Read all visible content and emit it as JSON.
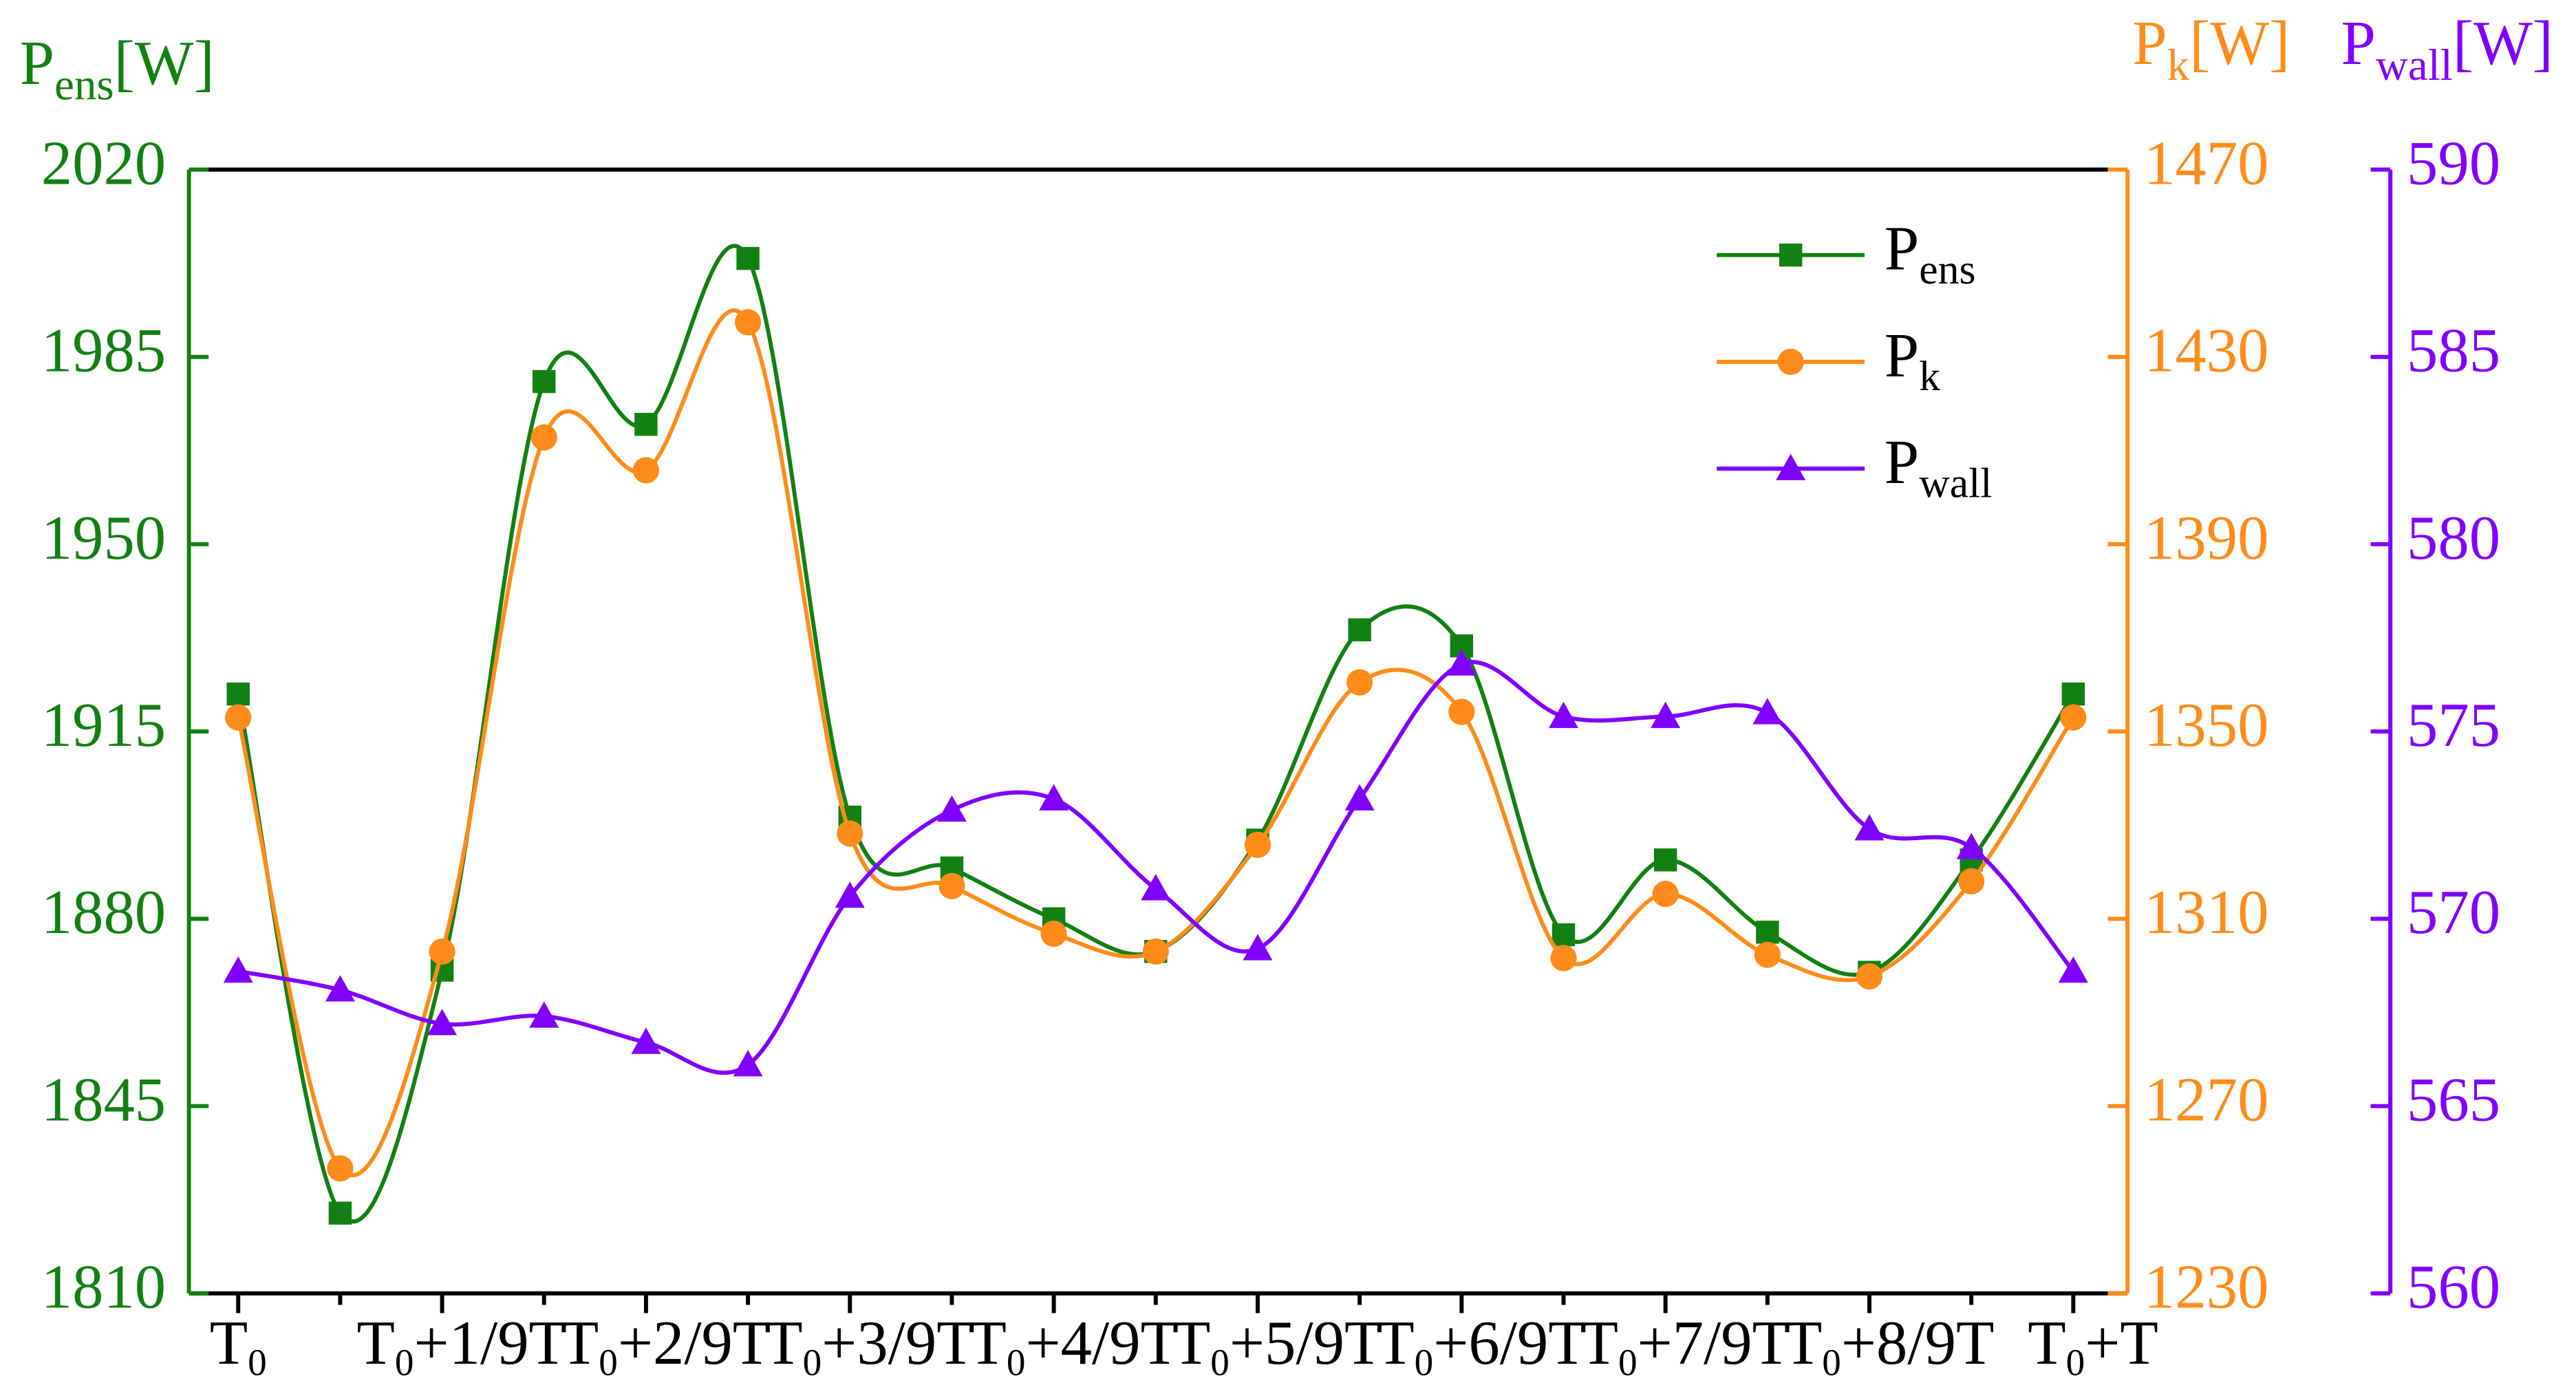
{
  "chart_data": {
    "type": "line",
    "categories": [
      "T0",
      null,
      "T0+1/9T",
      null,
      "T0+2/9T",
      null,
      "T0+3/9T",
      null,
      "T0+4/9T",
      null,
      "T0+5/9T",
      null,
      "T0+6/9T",
      null,
      "T0+7/9T",
      null,
      "T0+8/9T",
      null,
      "T0+T"
    ],
    "y_label": "Pens[W]",
    "y2_label": "Pk[W]",
    "y3_label": "Pwall[W]",
    "ylim": [
      1810,
      2020
    ],
    "yticks": [
      1810,
      1845,
      1880,
      1915,
      1950,
      1985,
      2020
    ],
    "y2lim": [
      1230,
      1470
    ],
    "y2ticks": [
      1230,
      1270,
      1310,
      1350,
      1390,
      1430,
      1470
    ],
    "y3lim": [
      560,
      590
    ],
    "y3ticks": [
      560,
      565,
      570,
      575,
      580,
      585,
      590
    ],
    "y_color": "#138013",
    "y2_color": "#ff8c1a",
    "y3_color": "#8000ff",
    "smooth": true,
    "series": [
      {
        "name": "Pens",
        "color": "#138013",
        "marker": "square",
        "axis": "y",
        "values": [
          1922,
          1825,
          1870.4,
          1980.4,
          1972.4,
          2003.4,
          1899,
          1889.5,
          1880,
          1873.9,
          1894.7,
          1934,
          1931,
          1877,
          1891,
          1877.5,
          1870,
          1891,
          1922
        ]
      },
      {
        "name": "Pk",
        "color": "#ff8c1a",
        "marker": "circle",
        "axis": "y2",
        "values": [
          1353,
          1256.7,
          1303,
          1412.8,
          1405.8,
          1437.4,
          1328.2,
          1317,
          1306.8,
          1303,
          1325.8,
          1360.5,
          1354.2,
          1301.6,
          1315.3,
          1302.3,
          1297.7,
          1318,
          1353
        ]
      },
      {
        "name": "Pwall",
        "color": "#8000ff",
        "marker": "triangle",
        "axis": "y3",
        "values": [
          568.6,
          568.1,
          567.2,
          567.4,
          566.7,
          566.1,
          570.6,
          572.9,
          573.2,
          570.8,
          569.2,
          573.2,
          576.8,
          575.4,
          575.4,
          575.5,
          572.4,
          571.9,
          568.6
        ]
      }
    ]
  }
}
